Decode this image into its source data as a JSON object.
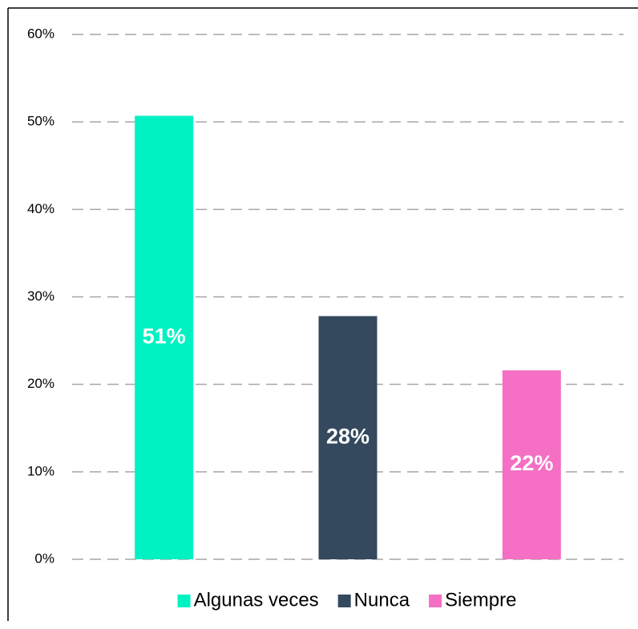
{
  "chart_data": {
    "type": "bar",
    "categories": [
      "Algunas veces",
      "Nunca",
      "Siempre"
    ],
    "values": [
      50.7,
      27.8,
      21.6
    ],
    "value_labels": [
      "51%",
      "28%",
      "22%"
    ],
    "colors": [
      "#00f2c3",
      "#34495e",
      "#f56fc4"
    ],
    "ylim": [
      0,
      60
    ],
    "yticks": [
      {
        "value": 0,
        "label": "0%"
      },
      {
        "value": 10,
        "label": "10%"
      },
      {
        "value": 20,
        "label": "20%"
      },
      {
        "value": 30,
        "label": "30%"
      },
      {
        "value": 40,
        "label": "40%"
      },
      {
        "value": 50,
        "label": "50%"
      },
      {
        "value": 60,
        "label": "60%"
      }
    ],
    "grid": true,
    "legend": "bottom"
  }
}
